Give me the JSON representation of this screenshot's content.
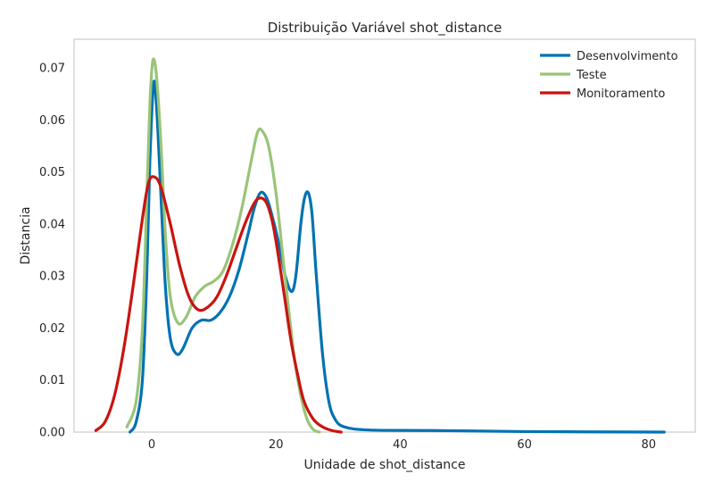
{
  "chart_data": {
    "type": "line",
    "title": "Distribuição Variável shot_distance",
    "xlabel": "Unidade de shot_distance",
    "ylabel": "Distancia",
    "xlim": [
      -12.5,
      87.5
    ],
    "ylim": [
      0,
      0.0755
    ],
    "xticks": [
      0,
      20,
      40,
      60,
      80
    ],
    "xtick_labels": [
      "0",
      "20",
      "40",
      "60",
      "80"
    ],
    "yticks": [
      0,
      0.01,
      0.02,
      0.03,
      0.04,
      0.05,
      0.06,
      0.07
    ],
    "ytick_labels": [
      "0.00",
      "0.01",
      "0.02",
      "0.03",
      "0.04",
      "0.05",
      "0.06",
      "0.07"
    ],
    "grid": false,
    "legend_position": "top-right",
    "series": [
      {
        "name": "Desenvolvimento",
        "color": "#0072b2",
        "points": [
          [
            -3.5,
            0.0
          ],
          [
            -2.5,
            0.002
          ],
          [
            -1.5,
            0.01
          ],
          [
            -0.8,
            0.03
          ],
          [
            -0.3,
            0.052
          ],
          [
            0.3,
            0.067
          ],
          [
            0.8,
            0.062
          ],
          [
            1.5,
            0.045
          ],
          [
            2.2,
            0.028
          ],
          [
            3.0,
            0.018
          ],
          [
            4.0,
            0.015
          ],
          [
            5.0,
            0.016
          ],
          [
            6.5,
            0.02
          ],
          [
            8.0,
            0.0215
          ],
          [
            9.5,
            0.0215
          ],
          [
            11.0,
            0.023
          ],
          [
            12.5,
            0.026
          ],
          [
            14.0,
            0.031
          ],
          [
            15.5,
            0.038
          ],
          [
            16.5,
            0.043
          ],
          [
            17.5,
            0.046
          ],
          [
            18.5,
            0.045
          ],
          [
            19.5,
            0.041
          ],
          [
            20.5,
            0.036
          ],
          [
            21.5,
            0.03
          ],
          [
            22.5,
            0.027
          ],
          [
            23.2,
            0.03
          ],
          [
            24.0,
            0.04
          ],
          [
            24.6,
            0.045
          ],
          [
            25.2,
            0.046
          ],
          [
            25.8,
            0.042
          ],
          [
            26.5,
            0.03
          ],
          [
            27.5,
            0.015
          ],
          [
            28.5,
            0.006
          ],
          [
            29.5,
            0.0025
          ],
          [
            31.0,
            0.001
          ],
          [
            35.0,
            0.0004
          ],
          [
            45.0,
            0.0003
          ],
          [
            60.0,
            0.0001
          ],
          [
            82.5,
            0.0
          ]
        ]
      },
      {
        "name": "Teste",
        "color": "#9ac479",
        "points": [
          [
            -4.0,
            0.001
          ],
          [
            -2.5,
            0.006
          ],
          [
            -1.5,
            0.02
          ],
          [
            -0.8,
            0.045
          ],
          [
            -0.3,
            0.063
          ],
          [
            0.2,
            0.0715
          ],
          [
            0.8,
            0.068
          ],
          [
            1.5,
            0.055
          ],
          [
            2.2,
            0.038
          ],
          [
            3.0,
            0.026
          ],
          [
            4.2,
            0.021
          ],
          [
            5.5,
            0.022
          ],
          [
            7.0,
            0.026
          ],
          [
            8.5,
            0.028
          ],
          [
            10.0,
            0.029
          ],
          [
            11.5,
            0.031
          ],
          [
            13.0,
            0.036
          ],
          [
            14.5,
            0.043
          ],
          [
            16.0,
            0.052
          ],
          [
            17.0,
            0.0575
          ],
          [
            17.7,
            0.058
          ],
          [
            18.8,
            0.055
          ],
          [
            20.0,
            0.046
          ],
          [
            21.0,
            0.035
          ],
          [
            22.0,
            0.024
          ],
          [
            23.0,
            0.014
          ],
          [
            24.0,
            0.007
          ],
          [
            25.0,
            0.0025
          ],
          [
            26.0,
            0.0005
          ],
          [
            27.0,
            0.0
          ]
        ]
      },
      {
        "name": "Monitoramento",
        "color": "#c9140f",
        "points": [
          [
            -9.0,
            0.0003
          ],
          [
            -7.5,
            0.002
          ],
          [
            -6.0,
            0.007
          ],
          [
            -4.5,
            0.016
          ],
          [
            -3.0,
            0.028
          ],
          [
            -1.5,
            0.041
          ],
          [
            -0.5,
            0.048
          ],
          [
            0.5,
            0.049
          ],
          [
            1.5,
            0.047
          ],
          [
            3.0,
            0.04
          ],
          [
            4.5,
            0.032
          ],
          [
            6.0,
            0.026
          ],
          [
            7.5,
            0.0235
          ],
          [
            9.0,
            0.024
          ],
          [
            10.5,
            0.026
          ],
          [
            12.0,
            0.03
          ],
          [
            13.5,
            0.035
          ],
          [
            15.0,
            0.04
          ],
          [
            16.5,
            0.044
          ],
          [
            17.5,
            0.045
          ],
          [
            18.5,
            0.044
          ],
          [
            19.5,
            0.04
          ],
          [
            20.5,
            0.033
          ],
          [
            21.5,
            0.025
          ],
          [
            22.5,
            0.017
          ],
          [
            23.5,
            0.011
          ],
          [
            24.5,
            0.006
          ],
          [
            26.0,
            0.0025
          ],
          [
            27.5,
            0.001
          ],
          [
            29.0,
            0.0003
          ],
          [
            30.5,
            0.0
          ]
        ]
      }
    ]
  }
}
